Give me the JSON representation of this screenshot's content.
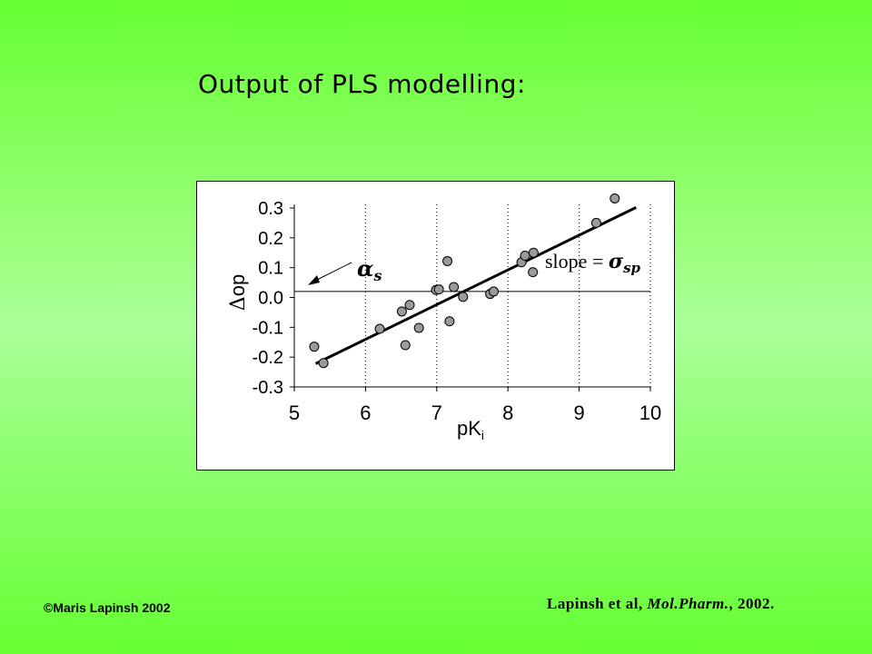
{
  "slide": {
    "title": "Output of PLS modelling:",
    "copyright": "©Maris Lapinsh 2002",
    "citation_prefix": "Lapinsh et al, ",
    "citation_journal": "Mol.Pharm.",
    "citation_suffix": ", 2002."
  },
  "chart_data": {
    "type": "scatter",
    "xlabel_main": "pK",
    "xlabel_sub": "i",
    "ylabel_symbol": "Δ",
    "ylabel_text": "op",
    "xlim": [
      5,
      10
    ],
    "ylim": [
      -0.3,
      0.3
    ],
    "xticks": [
      5,
      6,
      7,
      8,
      9,
      10
    ],
    "yticks": [
      0.3,
      0.2,
      0.1,
      0.0,
      -0.1,
      -0.2,
      -0.3
    ],
    "ytick_labels": [
      "0.3",
      "0.2",
      "0.1",
      "0.0",
      "-0.1",
      "-0.2",
      "-0.3"
    ],
    "points": [
      {
        "x": 5.28,
        "y": -0.165
      },
      {
        "x": 5.41,
        "y": -0.22
      },
      {
        "x": 6.2,
        "y": -0.105
      },
      {
        "x": 6.51,
        "y": -0.047
      },
      {
        "x": 6.56,
        "y": -0.16
      },
      {
        "x": 6.62,
        "y": -0.025
      },
      {
        "x": 6.75,
        "y": -0.102
      },
      {
        "x": 6.99,
        "y": 0.025
      },
      {
        "x": 7.03,
        "y": 0.027
      },
      {
        "x": 7.15,
        "y": 0.122
      },
      {
        "x": 7.18,
        "y": -0.08
      },
      {
        "x": 7.24,
        "y": 0.035
      },
      {
        "x": 7.37,
        "y": 0.002
      },
      {
        "x": 7.75,
        "y": 0.012
      },
      {
        "x": 7.8,
        "y": 0.02
      },
      {
        "x": 8.19,
        "y": 0.118
      },
      {
        "x": 8.24,
        "y": 0.14
      },
      {
        "x": 8.35,
        "y": 0.085
      },
      {
        "x": 8.36,
        "y": 0.15
      },
      {
        "x": 9.24,
        "y": 0.25
      },
      {
        "x": 9.5,
        "y": 0.332
      }
    ],
    "regression_line": {
      "x1": 5.3,
      "y1": -0.222,
      "x2": 9.8,
      "y2": 0.302
    },
    "baseline_y": 0.02,
    "annotation_alpha": "α",
    "annotation_alpha_sub": "s",
    "annotation_slope": "slope = ",
    "annotation_sigma": "σ",
    "annotation_sigma_sub": "sp"
  }
}
